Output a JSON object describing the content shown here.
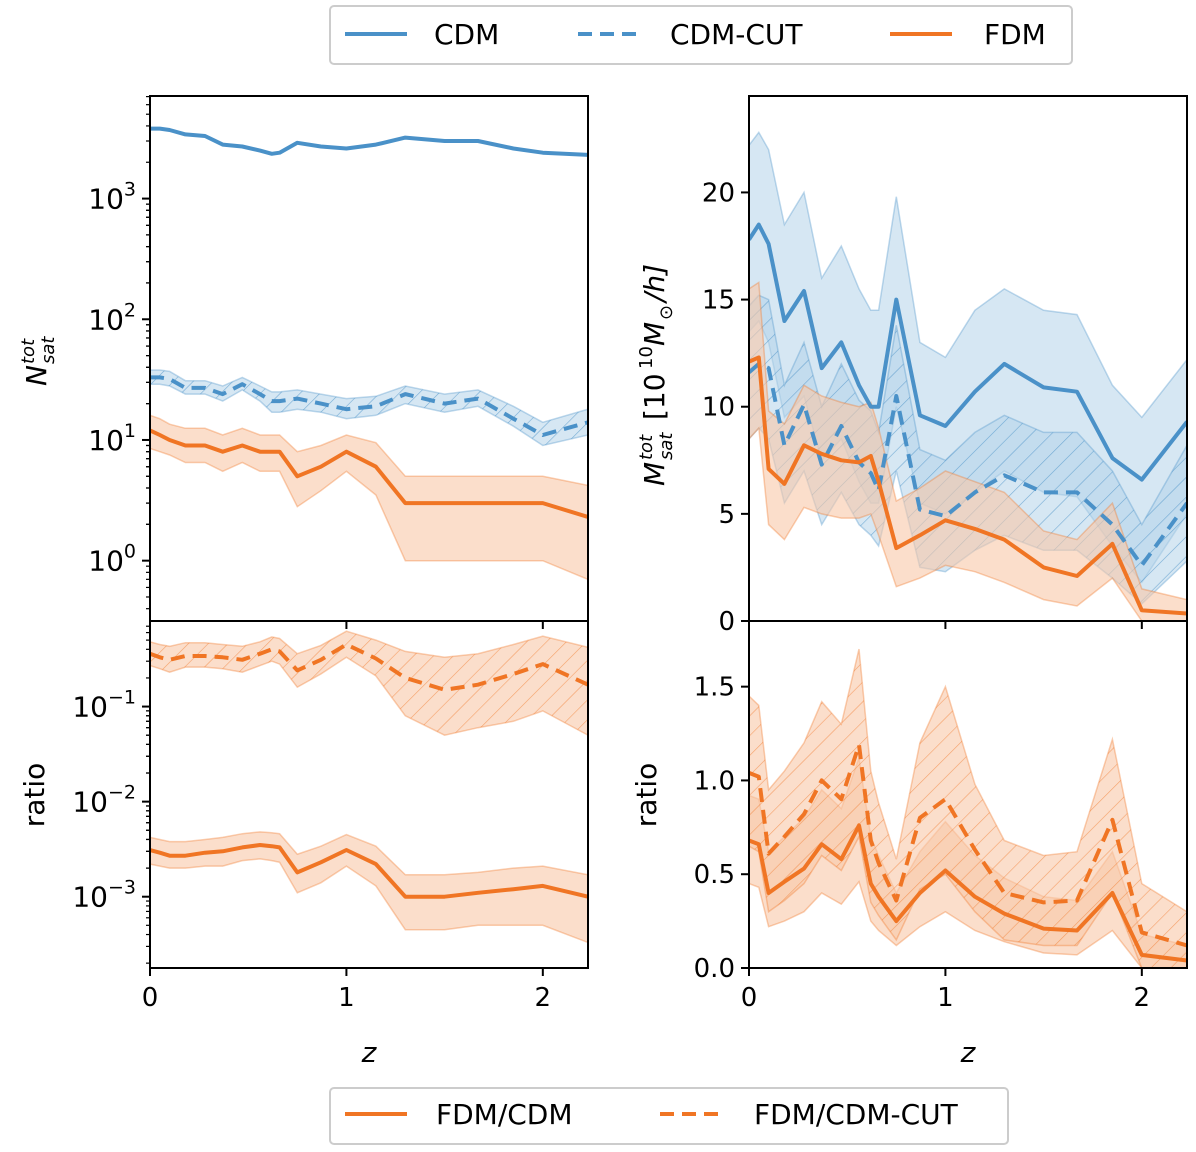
{
  "colors": {
    "cdm": "#4a91c8",
    "fdm": "#f07524",
    "cdm_band": "#b5d3ea",
    "fdm_band": "#f9c8a8"
  },
  "legend_top": [
    {
      "label": "CDM",
      "color": "#4a91c8",
      "dash": false
    },
    {
      "label": "CDM-CUT",
      "color": "#4a91c8",
      "dash": true
    },
    {
      "label": "FDM",
      "color": "#f07524",
      "dash": false
    }
  ],
  "legend_bottom": [
    {
      "label": "FDM/CDM",
      "color": "#f07524",
      "dash": false
    },
    {
      "label": "FDM/CDM-CUT",
      "color": "#f07524",
      "dash": true
    }
  ],
  "axis_labels": {
    "x_left": "z",
    "x_right": "z",
    "ratio_left": "ratio",
    "ratio_right": "ratio",
    "n_sat_main": "N",
    "n_sat_sub": "sat",
    "n_sat_sup": "tot",
    "m_sat_main": "M",
    "m_sat_sub": "sat",
    "m_sat_sup": "tot",
    "m_sat_units": "[10",
    "m_sat_units_exp": "10",
    "m_sat_units_rest": "M",
    "m_sat_units_sun": "⊙",
    "m_sat_units_end": "/h]"
  },
  "chart_data": [
    {
      "id": "n_sat",
      "type": "line",
      "scale": "log",
      "xlim": [
        0,
        2.23
      ],
      "ylim_log10": [
        -0.5,
        3.85
      ],
      "x_ticks": [
        0,
        1,
        2
      ],
      "y_ticks": [
        {
          "exp": 0,
          "label_base": "10",
          "label_exp": "0"
        },
        {
          "exp": 1,
          "label_base": "10",
          "label_exp": "1"
        },
        {
          "exp": 2,
          "label_base": "10",
          "label_exp": "2"
        },
        {
          "exp": 3,
          "label_base": "10",
          "label_exp": "3"
        }
      ],
      "x": [
        0,
        0.05,
        0.1,
        0.18,
        0.28,
        0.37,
        0.47,
        0.56,
        0.62,
        0.66,
        0.75,
        0.87,
        1.0,
        1.15,
        1.3,
        1.5,
        1.67,
        1.85,
        2.0,
        2.23
      ],
      "series": [
        {
          "name": "CDM",
          "color_key": "cdm",
          "dash": false,
          "values": [
            3800,
            3800,
            3700,
            3400,
            3300,
            2800,
            2700,
            2500,
            2350,
            2400,
            2900,
            2700,
            2600,
            2800,
            3200,
            3000,
            3000,
            2600,
            2400,
            2300
          ]
        },
        {
          "name": "CDM-CUT",
          "color_key": "cdm",
          "dash": true,
          "values": [
            33,
            33,
            32,
            27,
            27,
            24,
            29,
            24,
            21,
            21,
            22,
            20,
            18,
            19,
            24,
            20,
            22,
            15,
            11,
            14
          ],
          "band_low": [
            29,
            29,
            28,
            24,
            24,
            21,
            26,
            21,
            17,
            17,
            18,
            17,
            15,
            16,
            20,
            17,
            19,
            13,
            9,
            11
          ],
          "band_high": [
            38,
            38,
            37,
            31,
            31,
            28,
            33,
            28,
            25,
            25,
            26,
            24,
            22,
            23,
            28,
            24,
            26,
            19,
            14,
            18
          ]
        },
        {
          "name": "FDM",
          "color_key": "fdm",
          "dash": false,
          "values": [
            12,
            11,
            10,
            9,
            9,
            8,
            9,
            8,
            8,
            8,
            5,
            6,
            8,
            6,
            3,
            3,
            3,
            3,
            3,
            2.3
          ],
          "band_low": [
            8.5,
            8,
            7.5,
            6.5,
            6.5,
            5.5,
            6.5,
            5.5,
            5.5,
            5.5,
            2.8,
            3.8,
            5.5,
            3.5,
            1.0,
            1.0,
            1.0,
            1.0,
            1.0,
            0.7
          ],
          "band_high": [
            16,
            15,
            13.5,
            12.5,
            12.5,
            11,
            12.5,
            11,
            11,
            11,
            8,
            9,
            11,
            9.5,
            5,
            5,
            5,
            5,
            5,
            4.2
          ]
        }
      ]
    },
    {
      "id": "m_sat",
      "type": "line",
      "scale": "linear",
      "xlim": [
        0,
        2.23
      ],
      "ylim": [
        0,
        24.5
      ],
      "x_ticks": [
        0,
        1,
        2
      ],
      "y_ticks": [
        0,
        5,
        10,
        15,
        20
      ],
      "x": [
        0,
        0.05,
        0.1,
        0.18,
        0.28,
        0.37,
        0.47,
        0.56,
        0.62,
        0.66,
        0.75,
        0.87,
        1.0,
        1.15,
        1.3,
        1.5,
        1.67,
        1.85,
        2.0,
        2.23
      ],
      "series": [
        {
          "name": "CDM",
          "color_key": "cdm",
          "dash": false,
          "values": [
            17.8,
            18.5,
            17.6,
            14.0,
            15.4,
            11.8,
            13.0,
            11.0,
            10.0,
            10.0,
            15.0,
            9.6,
            9.1,
            10.7,
            12.0,
            10.9,
            10.7,
            7.6,
            6.6,
            9.3
          ],
          "band_low": [
            13.5,
            14.0,
            13.0,
            9.5,
            10.5,
            7.5,
            8.5,
            6.5,
            5.5,
            5.5,
            10.0,
            5.5,
            5.0,
            6.0,
            7.0,
            6.0,
            5.8,
            3.5,
            1.8,
            5.0
          ],
          "band_high": [
            22.2,
            22.8,
            22.0,
            18.5,
            20.0,
            16.0,
            17.5,
            15.5,
            14.5,
            14.5,
            19.8,
            13.0,
            12.3,
            14.5,
            15.5,
            14.5,
            14.3,
            11.0,
            9.5,
            12.2
          ]
        },
        {
          "name": "CDM-CUT",
          "color_key": "cdm",
          "dash": true,
          "values": [
            11.6,
            12.0,
            11.8,
            8.2,
            10.1,
            7.3,
            9.1,
            7.4,
            6.9,
            6.1,
            10.5,
            5.2,
            4.9,
            6.0,
            6.8,
            6.0,
            6.0,
            4.5,
            2.6,
            5.5
          ],
          "band_low": [
            8.5,
            9.0,
            8.5,
            5.5,
            7.0,
            4.5,
            6.0,
            4.5,
            4.0,
            3.5,
            7.0,
            2.5,
            2.3,
            3.3,
            4.0,
            3.3,
            3.3,
            2.0,
            0.8,
            2.8
          ],
          "band_high": [
            14.7,
            15.2,
            15.0,
            11.0,
            13.0,
            10.0,
            12.0,
            10.3,
            9.8,
            8.8,
            13.8,
            8.0,
            7.5,
            8.8,
            9.6,
            8.8,
            8.8,
            7.0,
            4.5,
            8.2
          ]
        },
        {
          "name": "FDM",
          "color_key": "fdm",
          "dash": false,
          "values": [
            12.1,
            12.3,
            7.1,
            6.4,
            8.2,
            7.8,
            7.5,
            7.4,
            7.7,
            6.5,
            3.4,
            4.0,
            4.7,
            4.3,
            3.8,
            2.5,
            2.1,
            3.6,
            0.5,
            0.35
          ],
          "band_low": [
            8.5,
            9.0,
            4.5,
            3.8,
            5.3,
            5.0,
            4.8,
            4.8,
            5.0,
            4.0,
            1.6,
            2.0,
            2.6,
            2.3,
            1.8,
            1.0,
            0.7,
            2.0,
            0.0,
            0.0
          ],
          "band_high": [
            15.5,
            15.8,
            9.8,
            9.2,
            11.0,
            10.5,
            10.2,
            10.0,
            10.2,
            9.0,
            5.6,
            6.2,
            7.0,
            6.5,
            6.0,
            4.2,
            3.8,
            5.5,
            1.5,
            1.0
          ]
        }
      ]
    },
    {
      "id": "ratio_left",
      "type": "line",
      "scale": "log",
      "xlim": [
        0,
        2.23
      ],
      "ylim_log10": [
        -3.75,
        -0.1
      ],
      "x_ticks": [
        {
          "value": 0,
          "label": "0"
        },
        {
          "value": 1,
          "label": "1"
        },
        {
          "value": 2,
          "label": "2"
        }
      ],
      "y_ticks": [
        {
          "exp": -3,
          "label_base": "10",
          "label_exp": "−3"
        },
        {
          "exp": -2,
          "label_base": "10",
          "label_exp": "−2"
        },
        {
          "exp": -1,
          "label_base": "10",
          "label_exp": "−1"
        }
      ],
      "x": [
        0,
        0.05,
        0.1,
        0.18,
        0.28,
        0.37,
        0.47,
        0.56,
        0.62,
        0.66,
        0.75,
        0.87,
        1.0,
        1.15,
        1.3,
        1.5,
        1.67,
        1.85,
        2.0,
        2.23
      ],
      "series": [
        {
          "name": "FDM/CDM",
          "color_key": "fdm",
          "dash": false,
          "values": [
            0.0031,
            0.0029,
            0.0027,
            0.0027,
            0.0029,
            0.003,
            0.0033,
            0.0035,
            0.0034,
            0.0033,
            0.0018,
            0.0023,
            0.0031,
            0.0022,
            0.001,
            0.001,
            0.0011,
            0.0012,
            0.0013,
            0.001
          ],
          "band_low": [
            0.0022,
            0.0021,
            0.002,
            0.002,
            0.0021,
            0.0021,
            0.0024,
            0.0025,
            0.0024,
            0.0023,
            0.0011,
            0.0014,
            0.0021,
            0.0013,
            0.00045,
            0.00045,
            0.0005,
            0.0005,
            0.0005,
            0.00033
          ],
          "band_high": [
            0.0042,
            0.004,
            0.0038,
            0.0038,
            0.004,
            0.0042,
            0.0046,
            0.0048,
            0.0047,
            0.0046,
            0.0028,
            0.0034,
            0.0045,
            0.0034,
            0.0017,
            0.0017,
            0.0018,
            0.002,
            0.0021,
            0.0017
          ]
        },
        {
          "name": "FDM/CDM-CUT",
          "color_key": "fdm",
          "dash": true,
          "values": [
            0.36,
            0.33,
            0.31,
            0.34,
            0.34,
            0.33,
            0.31,
            0.36,
            0.4,
            0.38,
            0.24,
            0.31,
            0.45,
            0.32,
            0.2,
            0.15,
            0.17,
            0.22,
            0.28,
            0.17
          ],
          "band_low": [
            0.27,
            0.25,
            0.23,
            0.26,
            0.26,
            0.25,
            0.23,
            0.27,
            0.3,
            0.28,
            0.16,
            0.22,
            0.33,
            0.21,
            0.08,
            0.05,
            0.06,
            0.07,
            0.09,
            0.05
          ],
          "band_high": [
            0.48,
            0.45,
            0.43,
            0.47,
            0.47,
            0.45,
            0.43,
            0.48,
            0.54,
            0.52,
            0.36,
            0.44,
            0.62,
            0.5,
            0.38,
            0.33,
            0.36,
            0.45,
            0.55,
            0.42
          ]
        }
      ]
    },
    {
      "id": "ratio_right",
      "type": "line",
      "scale": "linear",
      "xlim": [
        0,
        2.23
      ],
      "ylim": [
        0,
        1.85
      ],
      "x_ticks": [
        {
          "value": 0,
          "label": "0"
        },
        {
          "value": 1,
          "label": "1"
        },
        {
          "value": 2,
          "label": "2"
        }
      ],
      "y_ticks": [
        {
          "value": 0.0,
          "label": "0.0"
        },
        {
          "value": 0.5,
          "label": "0.5"
        },
        {
          "value": 1.0,
          "label": "1.0"
        },
        {
          "value": 1.5,
          "label": "1.5"
        }
      ],
      "x": [
        0,
        0.05,
        0.1,
        0.18,
        0.28,
        0.37,
        0.47,
        0.56,
        0.62,
        0.66,
        0.75,
        0.87,
        1.0,
        1.15,
        1.3,
        1.5,
        1.67,
        1.85,
        2.0,
        2.23
      ],
      "series": [
        {
          "name": "FDM/CDM",
          "color_key": "fdm",
          "dash": false,
          "values": [
            0.68,
            0.66,
            0.4,
            0.46,
            0.53,
            0.66,
            0.58,
            0.76,
            0.45,
            0.38,
            0.25,
            0.4,
            0.52,
            0.38,
            0.29,
            0.21,
            0.2,
            0.4,
            0.07,
            0.04
          ],
          "band_low": [
            0.45,
            0.43,
            0.22,
            0.25,
            0.3,
            0.4,
            0.34,
            0.46,
            0.25,
            0.2,
            0.12,
            0.22,
            0.3,
            0.2,
            0.14,
            0.08,
            0.07,
            0.2,
            0.0,
            0.0
          ],
          "band_high": [
            0.92,
            0.9,
            0.62,
            0.7,
            0.8,
            0.95,
            0.85,
            1.12,
            0.7,
            0.6,
            0.4,
            0.62,
            0.78,
            0.6,
            0.48,
            0.38,
            0.36,
            0.62,
            0.18,
            0.12
          ]
        },
        {
          "name": "FDM/CDM-CUT",
          "color_key": "fdm",
          "dash": true,
          "values": [
            1.04,
            1.02,
            0.61,
            0.7,
            0.82,
            1.0,
            0.9,
            1.19,
            0.68,
            0.56,
            0.36,
            0.8,
            0.9,
            0.63,
            0.4,
            0.35,
            0.36,
            0.79,
            0.19,
            0.12
          ],
          "band_low": [
            0.65,
            0.62,
            0.3,
            0.36,
            0.45,
            0.6,
            0.52,
            0.7,
            0.35,
            0.28,
            0.15,
            0.42,
            0.5,
            0.3,
            0.15,
            0.12,
            0.12,
            0.4,
            0.0,
            0.0
          ],
          "band_high": [
            1.45,
            1.4,
            0.95,
            1.05,
            1.2,
            1.42,
            1.3,
            1.7,
            1.05,
            0.88,
            0.58,
            1.2,
            1.5,
            0.98,
            0.68,
            0.6,
            0.62,
            1.22,
            0.45,
            0.3
          ]
        }
      ]
    }
  ]
}
